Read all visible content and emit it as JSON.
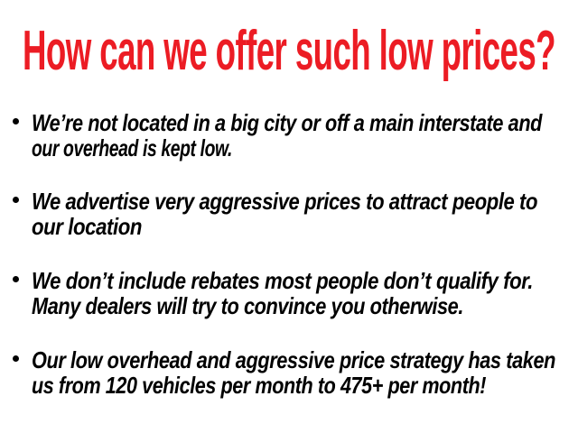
{
  "title": "How can we offer such low prices?",
  "title_color": "#ec1c24",
  "bullets": [
    {
      "lines": [
        "We’re not located in a big city or off a main interstate and",
        "our overhead is kept low."
      ]
    },
    {
      "lines": [
        "We advertise very aggressive prices to attract people to",
        "our location"
      ]
    },
    {
      "lines": [
        "We don’t include rebates most people don’t qualify for.",
        "Many dealers will try to convince you otherwise."
      ]
    },
    {
      "lines": [
        "Our low overhead and aggressive price strategy has taken",
        "us from 120 vehicles per month to 475+ per month!"
      ]
    }
  ]
}
